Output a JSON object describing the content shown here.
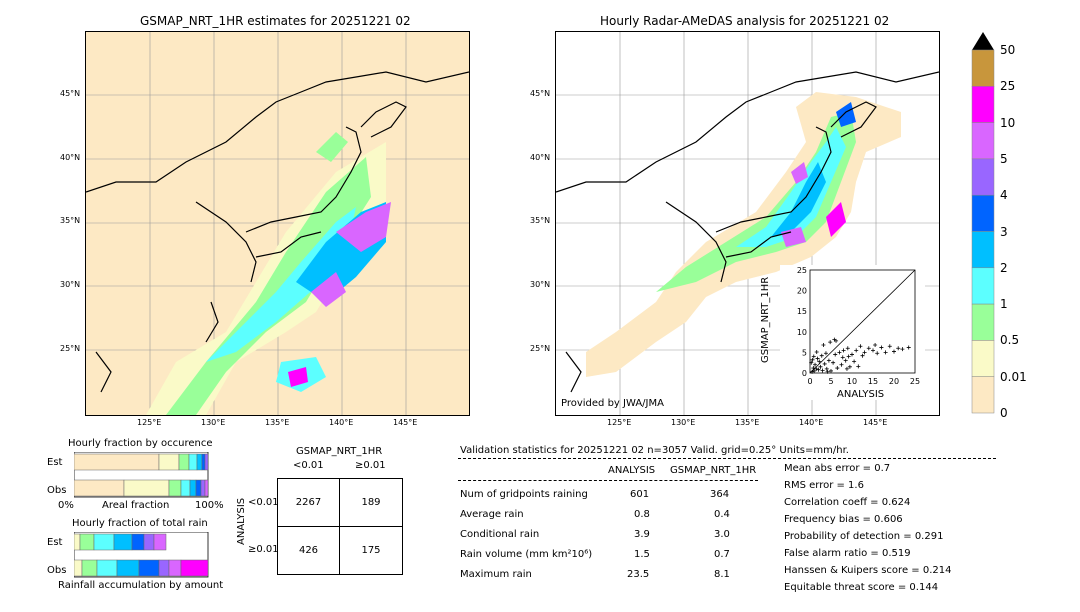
{
  "left_map": {
    "title": "GSMAP_NRT_1HR estimates for 20251221 02",
    "lat_labels": [
      "45°N",
      "40°N",
      "35°N",
      "30°N",
      "25°N"
    ],
    "lon_labels": [
      "125°E",
      "130°E",
      "135°E",
      "140°E",
      "145°E"
    ]
  },
  "right_map": {
    "title": "Hourly Radar-AMeDAS analysis for 20251221 02",
    "lat_labels": [
      "45°N",
      "40°N",
      "35°N",
      "30°N",
      "25°N"
    ],
    "lon_labels": [
      "125°E",
      "130°E",
      "135°E",
      "140°E",
      "145°E"
    ],
    "credit": "Provided by JWA/JMA"
  },
  "colorbar": {
    "labels": [
      "50",
      "25",
      "10",
      "5",
      "4",
      "3",
      "2",
      "1",
      "0.5",
      "0.01",
      "0"
    ],
    "colors": [
      "#c8963c",
      "#ff00ff",
      "#d966ff",
      "#9966ff",
      "#0064ff",
      "#00bfff",
      "#5cffff",
      "#99ff99",
      "#fafac8",
      "#fde9c4"
    ]
  },
  "occurrence": {
    "title": "Hourly fraction by occurence",
    "rows": [
      "Est",
      "Obs"
    ],
    "axis_left": "0%",
    "axis_mid": "Areal fraction",
    "axis_right": "100%"
  },
  "total_rain": {
    "title": "Hourly fraction of total rain",
    "rows": [
      "Est",
      "Obs"
    ],
    "footer": "Rainfall accumulation by amount"
  },
  "contingency": {
    "title": "GSMAP_NRT_1HR",
    "col_lt": "<0.01",
    "col_ge": "≥0.01",
    "side_label": "ANALYSIS",
    "row_lt": "<0.01",
    "row_ge": "≥0.01",
    "v11": "2267",
    "v12": "189",
    "v21": "426",
    "v22": "175"
  },
  "validation": {
    "header": "Validation statistics for 20251221 02  n=3057 Valid. grid=0.25° Units=mm/hr.",
    "col_analysis": "ANALYSIS",
    "col_gsmap": "GSMAP_NRT_1HR",
    "rows": [
      {
        "label": "Num of gridpoints raining",
        "analysis": "601",
        "gsmap": "364"
      },
      {
        "label": "Average rain",
        "analysis": "0.8",
        "gsmap": "0.4"
      },
      {
        "label": "Conditional rain",
        "analysis": "3.9",
        "gsmap": "3.0"
      },
      {
        "label": "Rain volume (mm km²10⁶)",
        "analysis": "1.5",
        "gsmap": "0.7"
      },
      {
        "label": "Maximum rain",
        "analysis": "23.5",
        "gsmap": "8.1"
      }
    ],
    "scores": [
      "Mean abs error =    0.7",
      "RMS error =    1.6",
      "Correlation coeff =  0.624",
      "Frequency bias =  0.606",
      "Probability of detection =  0.291",
      "False alarm ratio =  0.519",
      "Hanssen & Kuipers score =  0.214",
      "Equitable threat score =  0.144"
    ]
  },
  "chart_data": {
    "type": "scatter",
    "title": "",
    "xlabel": "ANALYSIS",
    "ylabel": "GSMAP_NRT_1HR",
    "xlim": [
      0,
      25
    ],
    "ylim": [
      0,
      25
    ],
    "xticks": [
      "0",
      "5",
      "10",
      "15",
      "20",
      "25"
    ],
    "yticks": [
      "0",
      "5",
      "10",
      "15",
      "20",
      "25"
    ],
    "points": [
      [
        0.5,
        0.3
      ],
      [
        0.8,
        1.2
      ],
      [
        1.0,
        0.5
      ],
      [
        1.2,
        2.0
      ],
      [
        1.5,
        1.0
      ],
      [
        2.0,
        0.8
      ],
      [
        0.3,
        2.5
      ],
      [
        0.6,
        3.2
      ],
      [
        1.8,
        3.5
      ],
      [
        2.5,
        1.5
      ],
      [
        3.0,
        0.6
      ],
      [
        3.5,
        2.2
      ],
      [
        4.0,
        1.0
      ],
      [
        4.5,
        3.0
      ],
      [
        5.0,
        0.5
      ],
      [
        5.5,
        2.5
      ],
      [
        6.0,
        4.5
      ],
      [
        6.5,
        1.2
      ],
      [
        7.0,
        5.0
      ],
      [
        7.5,
        2.0
      ],
      [
        8.0,
        5.5
      ],
      [
        8.5,
        3.0
      ],
      [
        9.0,
        6.0
      ],
      [
        9.5,
        1.5
      ],
      [
        10.0,
        4.5
      ],
      [
        11.0,
        5.5
      ],
      [
        12.0,
        6.5
      ],
      [
        13.0,
        5.0
      ],
      [
        14.0,
        6.0
      ],
      [
        15.0,
        5.5
      ],
      [
        16.0,
        4.8
      ],
      [
        17.0,
        6.2
      ],
      [
        18.0,
        5.0
      ],
      [
        19.0,
        6.5
      ],
      [
        20.0,
        5.2
      ],
      [
        21.0,
        6.0
      ],
      [
        22.0,
        5.8
      ],
      [
        23.5,
        6.2
      ],
      [
        3.2,
        6.8
      ],
      [
        4.8,
        7.5
      ],
      [
        6.2,
        7.8
      ],
      [
        5.8,
        8.1
      ],
      [
        2.8,
        4.2
      ],
      [
        1.6,
        5.1
      ],
      [
        0.9,
        4.0
      ],
      [
        12.5,
        4.2
      ],
      [
        15.5,
        6.8
      ],
      [
        10.5,
        2.8
      ],
      [
        8.8,
        1.0
      ],
      [
        11.5,
        1.6
      ],
      [
        2.2,
        2.8
      ],
      [
        3.8,
        4.8
      ],
      [
        4.2,
        0.3
      ],
      [
        7.8,
        3.8
      ],
      [
        9.2,
        4.0
      ]
    ],
    "diagonal": true
  }
}
